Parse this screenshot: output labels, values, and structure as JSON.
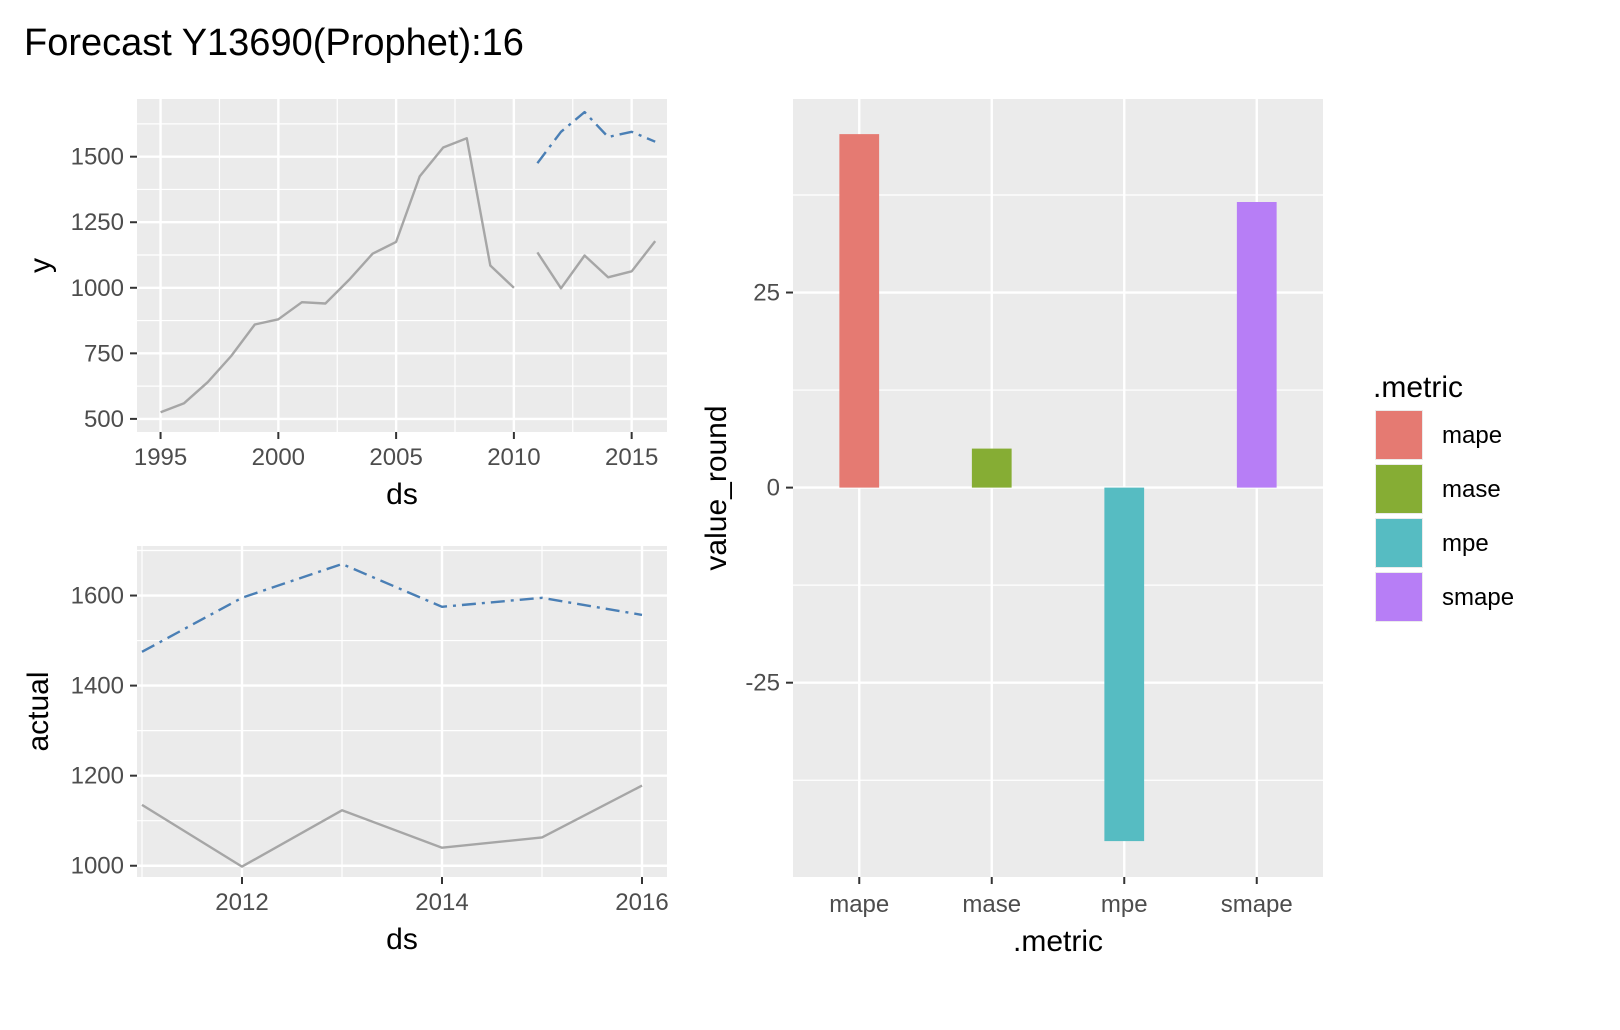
{
  "title": "Forecast Y13690(Prophet):16",
  "chart_data": [
    {
      "id": "history",
      "type": "line",
      "xlabel": "ds",
      "ylabel": "y",
      "xlim": [
        1994,
        2016.5
      ],
      "ylim": [
        450,
        1720
      ],
      "x_ticks": [
        1995,
        2000,
        2005,
        2010,
        2015
      ],
      "y_ticks": [
        500,
        750,
        1000,
        1250,
        1500
      ],
      "grid": true,
      "series": [
        {
          "style": "solid",
          "color": "#a6a6a6",
          "x": [
            1995,
            1996,
            1997,
            1998,
            1999,
            2000,
            2001,
            2002,
            2003,
            2004,
            2005,
            2006,
            2007,
            2008,
            2009,
            2010
          ],
          "values": [
            525,
            560,
            640,
            740,
            860,
            880,
            945,
            940,
            1030,
            1130,
            1175,
            1425,
            1535,
            1570,
            1085,
            1000
          ]
        },
        {
          "style": "solid",
          "color": "#a6a6a6",
          "x": [
            2011,
            2012,
            2013,
            2014,
            2015,
            2016
          ],
          "values": [
            1135,
            998,
            1123,
            1040,
            1063,
            1178
          ]
        },
        {
          "style": "dashdot",
          "color": "#4a7fb5",
          "x": [
            2011,
            2012,
            2013,
            2014,
            2015,
            2016
          ],
          "values": [
            1475,
            1595,
            1670,
            1575,
            1595,
            1557
          ]
        }
      ]
    },
    {
      "id": "test",
      "type": "line",
      "xlabel": "ds",
      "ylabel": "actual",
      "xlim": [
        2010.95,
        2016.25
      ],
      "ylim": [
        975,
        1710
      ],
      "x_ticks": [
        2012,
        2014,
        2016
      ],
      "y_ticks": [
        1000,
        1200,
        1400,
        1600
      ],
      "grid": true,
      "series": [
        {
          "style": "solid",
          "color": "#a6a6a6",
          "x": [
            2011,
            2012,
            2013,
            2014,
            2015,
            2016
          ],
          "values": [
            1135,
            998,
            1123,
            1040,
            1063,
            1178
          ]
        },
        {
          "style": "dashdot",
          "color": "#4a7fb5",
          "x": [
            2011,
            2012,
            2013,
            2014,
            2015,
            2016
          ],
          "values": [
            1475,
            1595,
            1670,
            1575,
            1595,
            1557
          ]
        }
      ]
    },
    {
      "id": "metrics",
      "type": "bar",
      "xlabel": ".metric",
      "ylabel": "value_round",
      "categories": [
        "mape",
        "mase",
        "mpe",
        "smape"
      ],
      "values": [
        45.3,
        5.0,
        -45.3,
        36.6
      ],
      "colors": [
        "#e57a72",
        "#86ad34",
        "#56bcc2",
        "#b77ef6"
      ],
      "ylim": [
        -49.9,
        49.8
      ],
      "y_ticks": [
        -25,
        0,
        25
      ],
      "y_tick_labels": [
        "-25",
        "0",
        "25"
      ],
      "grid": true,
      "legend": {
        "title": ".metric",
        "position": "right",
        "labels": [
          "mape",
          "mase",
          "mpe",
          "smape"
        ]
      }
    }
  ]
}
